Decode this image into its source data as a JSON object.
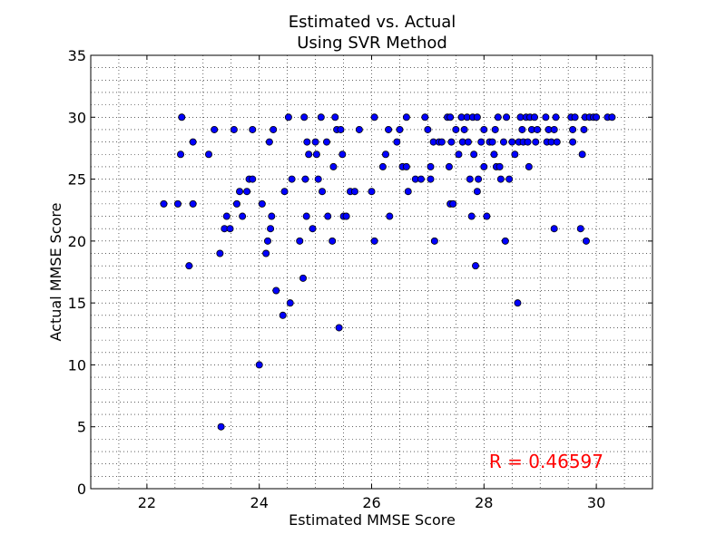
{
  "chart_data": {
    "type": "scatter",
    "title": "Estimated vs. Actual",
    "subtitle": "Using SVR Method",
    "xlabel": "Estimated MMSE Score",
    "ylabel": "Actual MMSE Score",
    "xlim": [
      21,
      31
    ],
    "ylim": [
      0,
      35
    ],
    "xticks": [
      22,
      24,
      26,
      28,
      30
    ],
    "yticks": [
      0,
      5,
      10,
      15,
      20,
      25,
      30,
      35
    ],
    "grid": true,
    "annotation": "R = 0.46597",
    "colors": {
      "marker": "#0000ff",
      "marker_edge": "#000000",
      "annotation": "#ff0000"
    },
    "series": [
      {
        "points": [
          [
            22.3,
            23
          ],
          [
            22.55,
            23
          ],
          [
            22.6,
            27
          ],
          [
            22.62,
            30
          ],
          [
            22.75,
            18
          ],
          [
            22.82,
            28
          ],
          [
            22.82,
            23
          ],
          [
            23.1,
            27
          ],
          [
            23.2,
            29
          ],
          [
            23.3,
            19
          ],
          [
            23.32,
            5
          ],
          [
            23.38,
            21
          ],
          [
            23.42,
            22
          ],
          [
            23.48,
            21
          ],
          [
            23.55,
            29
          ],
          [
            23.6,
            23
          ],
          [
            23.65,
            24
          ],
          [
            23.7,
            22
          ],
          [
            23.78,
            24
          ],
          [
            23.82,
            25
          ],
          [
            23.88,
            29
          ],
          [
            23.88,
            25
          ],
          [
            24.0,
            10
          ],
          [
            24.05,
            23
          ],
          [
            24.12,
            19
          ],
          [
            24.15,
            20
          ],
          [
            24.18,
            28
          ],
          [
            24.2,
            21
          ],
          [
            24.22,
            22
          ],
          [
            24.25,
            29
          ],
          [
            24.3,
            16
          ],
          [
            24.42,
            14
          ],
          [
            24.45,
            24
          ],
          [
            24.52,
            30
          ],
          [
            24.55,
            15
          ],
          [
            24.58,
            25
          ],
          [
            24.72,
            20
          ],
          [
            24.78,
            17
          ],
          [
            24.8,
            30
          ],
          [
            24.82,
            25
          ],
          [
            24.84,
            22
          ],
          [
            24.85,
            28
          ],
          [
            24.88,
            27
          ],
          [
            24.95,
            21
          ],
          [
            25.0,
            28
          ],
          [
            25.02,
            27
          ],
          [
            25.05,
            25
          ],
          [
            25.1,
            30
          ],
          [
            25.12,
            24
          ],
          [
            25.2,
            28
          ],
          [
            25.22,
            22
          ],
          [
            25.3,
            20
          ],
          [
            25.32,
            26
          ],
          [
            25.35,
            30
          ],
          [
            25.38,
            29
          ],
          [
            25.42,
            13
          ],
          [
            25.45,
            29
          ],
          [
            25.48,
            27
          ],
          [
            25.5,
            22
          ],
          [
            25.55,
            22
          ],
          [
            25.62,
            24
          ],
          [
            25.7,
            24
          ],
          [
            25.78,
            29
          ],
          [
            26.0,
            24
          ],
          [
            26.05,
            30
          ],
          [
            26.05,
            20
          ],
          [
            26.2,
            26
          ],
          [
            26.25,
            27
          ],
          [
            26.3,
            29
          ],
          [
            26.32,
            22
          ],
          [
            26.45,
            28
          ],
          [
            26.5,
            29
          ],
          [
            26.55,
            26
          ],
          [
            26.62,
            30
          ],
          [
            26.62,
            26
          ],
          [
            26.65,
            24
          ],
          [
            26.78,
            25
          ],
          [
            26.88,
            25
          ],
          [
            26.95,
            30
          ],
          [
            27.0,
            29
          ],
          [
            27.05,
            26
          ],
          [
            27.05,
            25
          ],
          [
            27.1,
            28
          ],
          [
            27.12,
            20
          ],
          [
            27.2,
            28
          ],
          [
            27.25,
            28
          ],
          [
            27.35,
            30
          ],
          [
            27.38,
            26
          ],
          [
            27.4,
            30
          ],
          [
            27.4,
            23
          ],
          [
            27.42,
            28
          ],
          [
            27.45,
            23
          ],
          [
            27.5,
            29
          ],
          [
            27.55,
            27
          ],
          [
            27.6,
            30
          ],
          [
            27.62,
            28
          ],
          [
            27.65,
            29
          ],
          [
            27.7,
            30
          ],
          [
            27.72,
            28
          ],
          [
            27.75,
            25
          ],
          [
            27.78,
            22
          ],
          [
            27.8,
            30
          ],
          [
            27.82,
            27
          ],
          [
            27.85,
            18
          ],
          [
            27.88,
            30
          ],
          [
            27.88,
            24
          ],
          [
            27.9,
            25
          ],
          [
            27.95,
            28
          ],
          [
            28.0,
            29
          ],
          [
            28.0,
            26
          ],
          [
            28.05,
            22
          ],
          [
            28.1,
            28
          ],
          [
            28.15,
            28
          ],
          [
            28.18,
            27
          ],
          [
            28.2,
            29
          ],
          [
            28.22,
            26
          ],
          [
            28.25,
            30
          ],
          [
            28.28,
            26
          ],
          [
            28.3,
            25
          ],
          [
            28.35,
            28
          ],
          [
            28.38,
            20
          ],
          [
            28.4,
            30
          ],
          [
            28.45,
            25
          ],
          [
            28.5,
            28
          ],
          [
            28.55,
            27
          ],
          [
            28.6,
            15
          ],
          [
            28.62,
            28
          ],
          [
            28.65,
            30
          ],
          [
            28.68,
            29
          ],
          [
            28.7,
            28
          ],
          [
            28.75,
            30
          ],
          [
            28.78,
            28
          ],
          [
            28.8,
            26
          ],
          [
            28.82,
            30
          ],
          [
            28.85,
            29
          ],
          [
            28.9,
            30
          ],
          [
            28.92,
            28
          ],
          [
            28.95,
            29
          ],
          [
            29.1,
            30
          ],
          [
            29.12,
            28
          ],
          [
            29.15,
            29
          ],
          [
            29.2,
            28
          ],
          [
            29.25,
            29
          ],
          [
            29.25,
            21
          ],
          [
            29.28,
            30
          ],
          [
            29.3,
            28
          ],
          [
            29.55,
            30
          ],
          [
            29.58,
            29
          ],
          [
            29.58,
            28
          ],
          [
            29.62,
            30
          ],
          [
            29.72,
            21
          ],
          [
            29.75,
            27
          ],
          [
            29.78,
            29
          ],
          [
            29.8,
            30
          ],
          [
            29.82,
            20
          ],
          [
            29.88,
            30
          ],
          [
            29.95,
            30
          ],
          [
            30.0,
            30
          ],
          [
            30.2,
            30
          ],
          [
            30.28,
            30
          ]
        ]
      }
    ]
  }
}
